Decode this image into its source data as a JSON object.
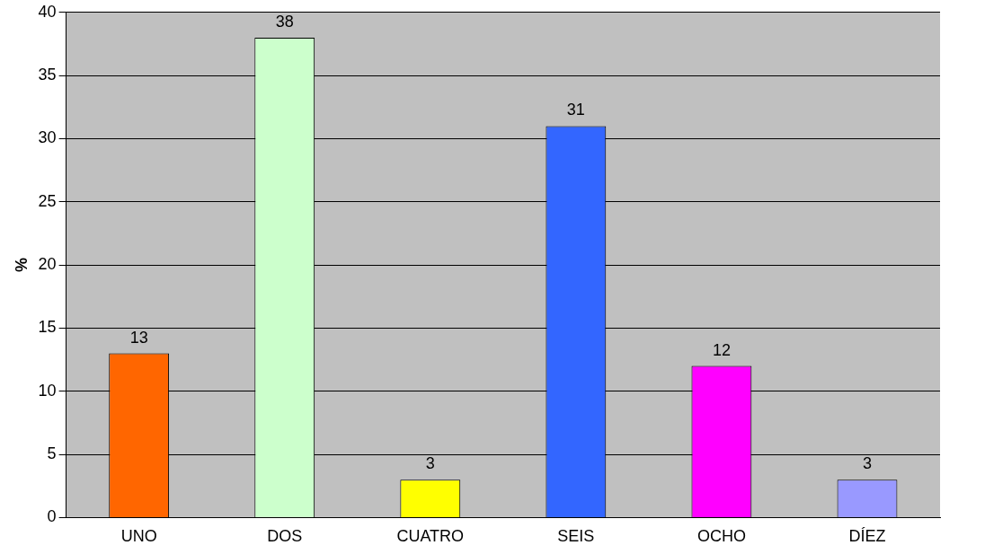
{
  "chart_data": {
    "type": "bar",
    "ylabel": "%",
    "categories": [
      "UNO",
      "DOS",
      "CUATRO",
      "SEIS",
      "OCHO",
      "DÍEZ"
    ],
    "values": [
      13,
      38,
      3,
      31,
      12,
      3
    ],
    "colors": [
      "#ff6600",
      "#ccffcc",
      "#ffff00",
      "#3366ff",
      "#ff00ff",
      "#9999ff"
    ],
    "ylim": [
      0,
      40
    ],
    "yticks": [
      0,
      5,
      10,
      15,
      20,
      25,
      30,
      35,
      40
    ],
    "grid": "y",
    "data_labels": true
  }
}
